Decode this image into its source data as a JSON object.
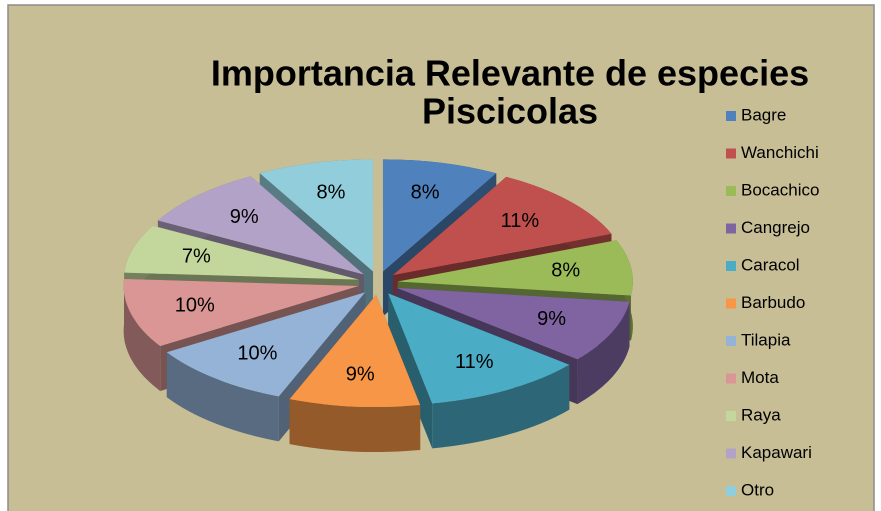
{
  "chart_data": {
    "type": "pie3d",
    "title": "Importancia Relevante de especies Piscicolas",
    "categories": [
      "Bagre",
      "Wanchichi",
      "Bocachico",
      "Cangrejo",
      "Caracol",
      "Barbudo",
      "Tilapia",
      "Mota",
      "Raya",
      "Kapawari",
      "Otro"
    ],
    "values": [
      8,
      11,
      8,
      9,
      11,
      9,
      10,
      10,
      7,
      9,
      8
    ],
    "value_labels": [
      "8%",
      "11%",
      "8%",
      "9%",
      "11%",
      "9%",
      "10%",
      "10%",
      "7%",
      "9%",
      "8%"
    ],
    "colors": [
      "#4f81bd",
      "#c0504d",
      "#9bbb59",
      "#8064a2",
      "#4bacc6",
      "#f79646",
      "#95b3d7",
      "#d99694",
      "#c3d69b",
      "#b3a2c7",
      "#92cddc"
    ],
    "legend": "right"
  }
}
